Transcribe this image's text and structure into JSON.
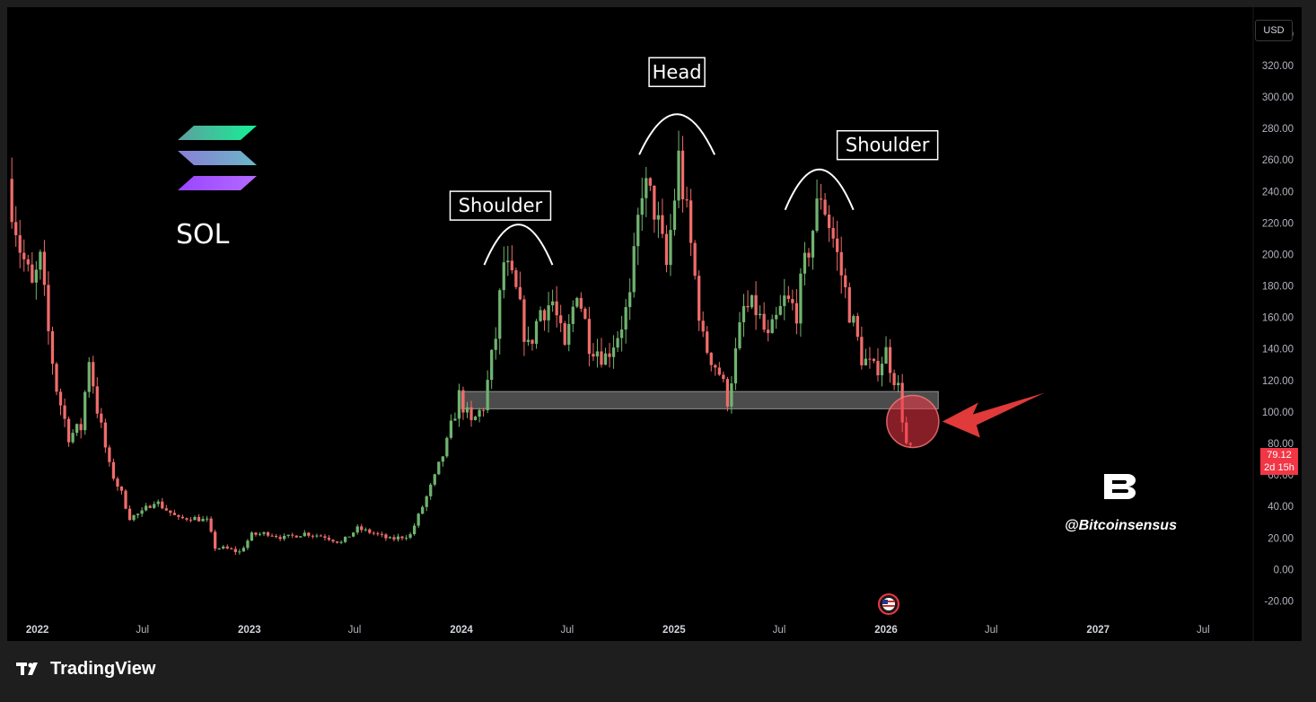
{
  "currency_button": "USD",
  "current_price": {
    "value": "79.12",
    "countdown": "2d 15h"
  },
  "watermark": {
    "coin_label": "SOL",
    "handle": "@Bitcoinsensus"
  },
  "footer": {
    "brand": "TradingView"
  },
  "icons": {
    "coin_logo": "solana-logo-icon",
    "author_logo": "bitcoinsensus-logo-icon",
    "flag": "us-flag-icon",
    "brand": "tradingview-logo-icon",
    "pointer": "red-arrow-icon"
  },
  "colors": {
    "up": "#26a69a",
    "up_candle": "#6fb36f",
    "down": "#f06b6b",
    "highlight": "#f23645",
    "background": "#000000"
  },
  "chart_data": {
    "type": "candlestick",
    "symbol": "SOL",
    "y_ticks": [
      "340.00",
      "320.00",
      "300.00",
      "280.00",
      "260.00",
      "240.00",
      "220.00",
      "200.00",
      "180.00",
      "160.00",
      "140.00",
      "120.00",
      "100.00",
      "80.00",
      "60.00",
      "40.00",
      "20.00",
      "0.00",
      "-20.00"
    ],
    "x_ticks": [
      {
        "label": "2022",
        "date": "2022-01-01",
        "bold": true
      },
      {
        "label": "Jul",
        "date": "2022-07-01",
        "bold": false
      },
      {
        "label": "2023",
        "date": "2023-01-01",
        "bold": true
      },
      {
        "label": "Jul",
        "date": "2023-07-01",
        "bold": false
      },
      {
        "label": "2024",
        "date": "2024-01-01",
        "bold": true
      },
      {
        "label": "Jul",
        "date": "2024-07-01",
        "bold": false
      },
      {
        "label": "2025",
        "date": "2025-01-01",
        "bold": true
      },
      {
        "label": "Jul",
        "date": "2025-07-01",
        "bold": false
      },
      {
        "label": "2026",
        "date": "2026-01-01",
        "bold": true
      },
      {
        "label": "Jul",
        "date": "2026-07-01",
        "bold": false
      },
      {
        "label": "2027",
        "date": "2027-01-01",
        "bold": true
      },
      {
        "label": "Jul",
        "date": "2027-07-01",
        "bold": false
      }
    ],
    "ylim": [
      -26,
      357
    ],
    "xlim": [
      "2021-11-10",
      "2027-09-25"
    ],
    "price_path": [
      [
        "2021-11-15",
        248
      ],
      [
        "2021-12-06",
        205
      ],
      [
        "2021-12-27",
        178
      ],
      [
        "2022-01-10",
        195
      ],
      [
        "2022-01-24",
        150
      ],
      [
        "2022-02-07",
        115
      ],
      [
        "2022-02-28",
        85
      ],
      [
        "2022-03-21",
        90
      ],
      [
        "2022-04-04",
        135
      ],
      [
        "2022-04-18",
        102
      ],
      [
        "2022-05-09",
        65
      ],
      [
        "2022-05-30",
        48
      ],
      [
        "2022-06-13",
        33
      ],
      [
        "2022-07-04",
        36
      ],
      [
        "2022-07-25",
        44
      ],
      [
        "2022-08-15",
        38
      ],
      [
        "2022-09-05",
        32
      ],
      [
        "2022-09-26",
        33
      ],
      [
        "2022-10-24",
        31
      ],
      [
        "2022-11-07",
        14
      ],
      [
        "2022-11-28",
        13
      ],
      [
        "2022-12-19",
        11
      ],
      [
        "2023-01-09",
        22
      ],
      [
        "2023-02-06",
        23
      ],
      [
        "2023-03-06",
        20
      ],
      [
        "2023-04-10",
        23
      ],
      [
        "2023-05-15",
        21
      ],
      [
        "2023-06-12",
        17
      ],
      [
        "2023-07-10",
        26
      ],
      [
        "2023-08-07",
        23
      ],
      [
        "2023-09-04",
        19
      ],
      [
        "2023-10-09",
        22
      ],
      [
        "2023-10-30",
        40
      ],
      [
        "2023-11-20",
        58
      ],
      [
        "2023-12-11",
        80
      ],
      [
        "2024-01-01",
        110
      ],
      [
        "2024-01-22",
        92
      ],
      [
        "2024-02-12",
        104
      ],
      [
        "2024-03-04",
        148
      ],
      [
        "2024-03-18",
        195
      ],
      [
        "2024-04-08",
        175
      ],
      [
        "2024-04-29",
        140
      ],
      [
        "2024-05-20",
        165
      ],
      [
        "2024-06-10",
        170
      ],
      [
        "2024-07-01",
        138
      ],
      [
        "2024-07-22",
        180
      ],
      [
        "2024-08-12",
        145
      ],
      [
        "2024-09-09",
        135
      ],
      [
        "2024-09-30",
        150
      ],
      [
        "2024-10-21",
        170
      ],
      [
        "2024-11-11",
        245
      ],
      [
        "2024-12-02",
        230
      ],
      [
        "2024-12-23",
        192
      ],
      [
        "2025-01-13",
        260
      ],
      [
        "2025-02-03",
        205
      ],
      [
        "2025-02-24",
        145
      ],
      [
        "2025-03-24",
        125
      ],
      [
        "2025-04-07",
        108
      ],
      [
        "2025-05-05",
        165
      ],
      [
        "2025-05-26",
        165
      ],
      [
        "2025-06-16",
        145
      ],
      [
        "2025-07-14",
        170
      ],
      [
        "2025-08-04",
        165
      ],
      [
        "2025-08-25",
        205
      ],
      [
        "2025-09-15",
        240
      ],
      [
        "2025-10-06",
        210
      ],
      [
        "2025-11-03",
        165
      ],
      [
        "2025-11-24",
        135
      ],
      [
        "2025-12-15",
        126
      ],
      [
        "2026-01-05",
        138
      ],
      [
        "2026-01-26",
        115
      ],
      [
        "2026-02-09",
        79.12
      ]
    ],
    "annotations": [
      {
        "label": "Shoulder",
        "date": "2024-04-08",
        "peak": 205
      },
      {
        "label": "Head",
        "date": "2025-01-06",
        "peak": 275
      },
      {
        "label": "Shoulder",
        "date": "2025-09-08",
        "peak": 240
      }
    ],
    "support_zone": {
      "from": "2024-01-01",
      "to": "2026-04-01",
      "low": 102,
      "high": 113
    },
    "highlight_point": {
      "date": "2026-02-16",
      "value": 94
    },
    "last_price": 79.12
  }
}
